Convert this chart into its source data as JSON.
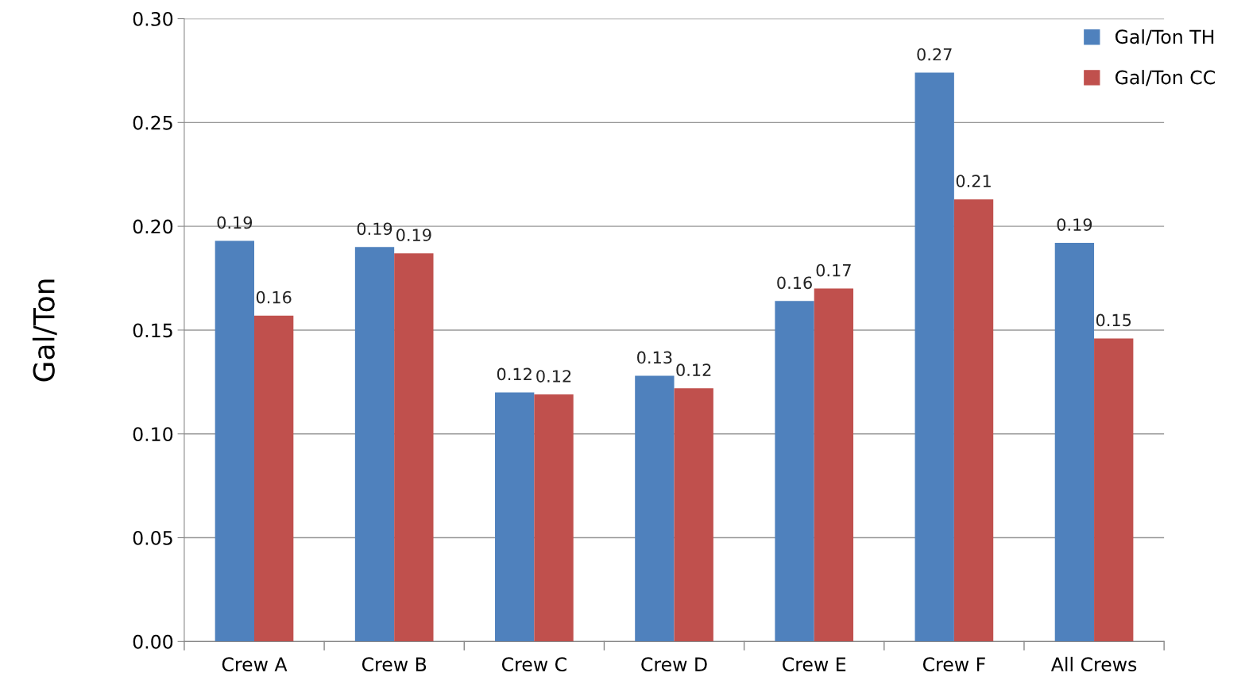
{
  "chart_data": {
    "type": "bar",
    "ylabel": "Gal/Ton",
    "categories": [
      "Crew A",
      "Crew B",
      "Crew C",
      "Crew D",
      "Crew E",
      "Crew F",
      "All Crews"
    ],
    "series": [
      {
        "name": "Gal/Ton TH",
        "color": "#4f81bd",
        "values": [
          0.193,
          0.19,
          0.12,
          0.128,
          0.164,
          0.274,
          0.192
        ],
        "value_labels": [
          "0.19",
          "0.19",
          "0.12",
          "0.13",
          "0.16",
          "0.27",
          "0.19"
        ]
      },
      {
        "name": "Gal/Ton CC",
        "color": "#c0504d",
        "values": [
          0.157,
          0.187,
          0.119,
          0.122,
          0.17,
          0.213,
          0.146
        ],
        "value_labels": [
          "0.16",
          "0.19",
          "0.12",
          "0.12",
          "0.17",
          "0.21",
          "0.15"
        ]
      }
    ],
    "ylim": [
      0,
      0.3
    ],
    "yticks": [
      {
        "value": 0,
        "label": "0.00"
      },
      {
        "value": 0.05,
        "label": "0.05"
      },
      {
        "value": 0.1,
        "label": "0.10"
      },
      {
        "value": 0.15,
        "label": "0.15"
      },
      {
        "value": 0.2,
        "label": "0.20"
      },
      {
        "value": 0.25,
        "label": "0.25"
      },
      {
        "value": 0.3,
        "label": "0.30"
      }
    ],
    "grid": "y",
    "legend": "top right"
  }
}
